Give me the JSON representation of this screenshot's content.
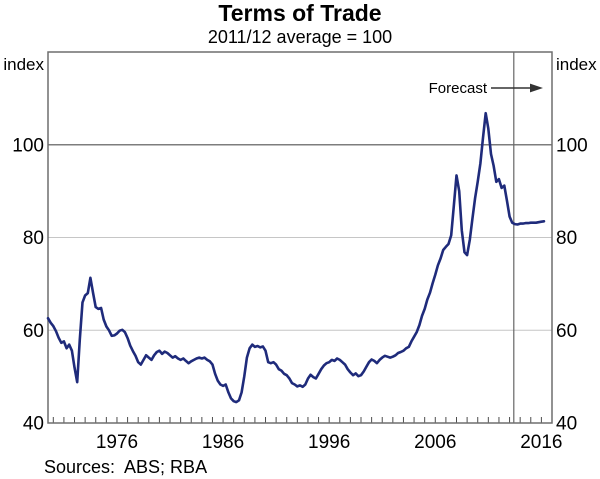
{
  "header": {
    "title": "Terms of Trade",
    "subtitle": "2011/12 average = 100"
  },
  "footer": {
    "sources": "Sources:  ABS; RBA"
  },
  "axes": {
    "unit_label_left": "index",
    "unit_label_right": "index",
    "y_ticks": [
      40,
      60,
      80,
      100
    ],
    "x_ticks": [
      1976,
      1986,
      1996,
      2006,
      2016
    ]
  },
  "annotations": {
    "forecast_label": "Forecast"
  },
  "colors": {
    "line": "#1f2b7b",
    "gridline": "#c6c6c6",
    "reference_line": "#7d7d7d",
    "frame": "#6e6e6e",
    "tick": "#4d4d4d",
    "divider": "#666666",
    "arrow": "#333333",
    "text": "#000000"
  },
  "chart_data": {
    "type": "line",
    "title": "Terms of Trade",
    "subtitle": "2011/12 average = 100",
    "xlabel": "",
    "ylabel": "index",
    "x_range": [
      1969.5,
      2017.0
    ],
    "y_range": [
      40,
      120
    ],
    "gridlines_light": [
      60,
      80
    ],
    "reference_line": 100,
    "forecast_start_x": 2013.4,
    "minor_tick_interval": 1,
    "legend_position": "none",
    "x_start": 1969.5,
    "x_step": 0.25,
    "series": [
      {
        "name": "Terms of trade",
        "values": [
          62.6,
          61.6,
          60.9,
          59.8,
          58.4,
          57.3,
          57.6,
          56.1,
          56.9,
          55.6,
          52.0,
          48.8,
          58.0,
          66.0,
          67.5,
          68.0,
          71.3,
          68.0,
          65.0,
          64.6,
          64.8,
          62.3,
          60.8,
          60.0,
          58.8,
          58.9,
          59.3,
          59.9,
          60.1,
          59.6,
          58.3,
          56.7,
          55.5,
          54.5,
          53.1,
          52.6,
          53.6,
          54.6,
          54.1,
          53.6,
          54.6,
          55.3,
          55.6,
          54.9,
          55.4,
          55.1,
          54.6,
          54.1,
          54.4,
          53.9,
          53.6,
          53.9,
          53.4,
          52.9,
          53.3,
          53.6,
          53.9,
          54.1,
          53.9,
          54.1,
          53.6,
          53.3,
          52.6,
          50.6,
          49.1,
          48.3,
          48.0,
          48.3,
          46.6,
          45.3,
          44.7,
          44.5,
          44.9,
          46.6,
          50.1,
          54.1,
          56.1,
          56.9,
          56.4,
          56.6,
          56.3,
          56.5,
          55.6,
          53.1,
          52.9,
          53.1,
          52.6,
          51.6,
          51.3,
          50.6,
          50.3,
          49.6,
          48.6,
          48.3,
          47.9,
          48.1,
          47.8,
          48.3,
          49.6,
          50.4,
          49.9,
          49.6,
          50.6,
          51.6,
          52.4,
          52.9,
          53.1,
          53.6,
          53.4,
          53.9,
          53.6,
          53.1,
          52.6,
          51.6,
          50.9,
          50.3,
          50.7,
          50.1,
          50.3,
          51.1,
          52.1,
          53.1,
          53.7,
          53.4,
          52.9,
          53.6,
          54.1,
          54.5,
          54.3,
          54.1,
          54.3,
          54.6,
          55.1,
          55.3,
          55.6,
          56.1,
          56.4,
          57.6,
          58.6,
          59.6,
          61.1,
          63.1,
          64.6,
          66.6,
          68.1,
          70.1,
          72.0,
          74.0,
          75.5,
          77.3,
          78.0,
          78.6,
          80.5,
          87.0,
          93.4,
          90.0,
          81.5,
          76.8,
          76.2,
          79.5,
          84.0,
          88.5,
          92.0,
          96.0,
          101.5,
          106.8,
          103.5,
          98.0,
          95.5,
          92.0,
          92.6,
          90.7,
          91.2,
          88.0,
          84.5,
          83.2,
          82.9,
          82.8,
          83.0,
          83.0,
          83.1,
          83.1,
          83.2,
          83.2,
          83.2,
          83.3,
          83.4,
          83.5
        ]
      }
    ]
  }
}
